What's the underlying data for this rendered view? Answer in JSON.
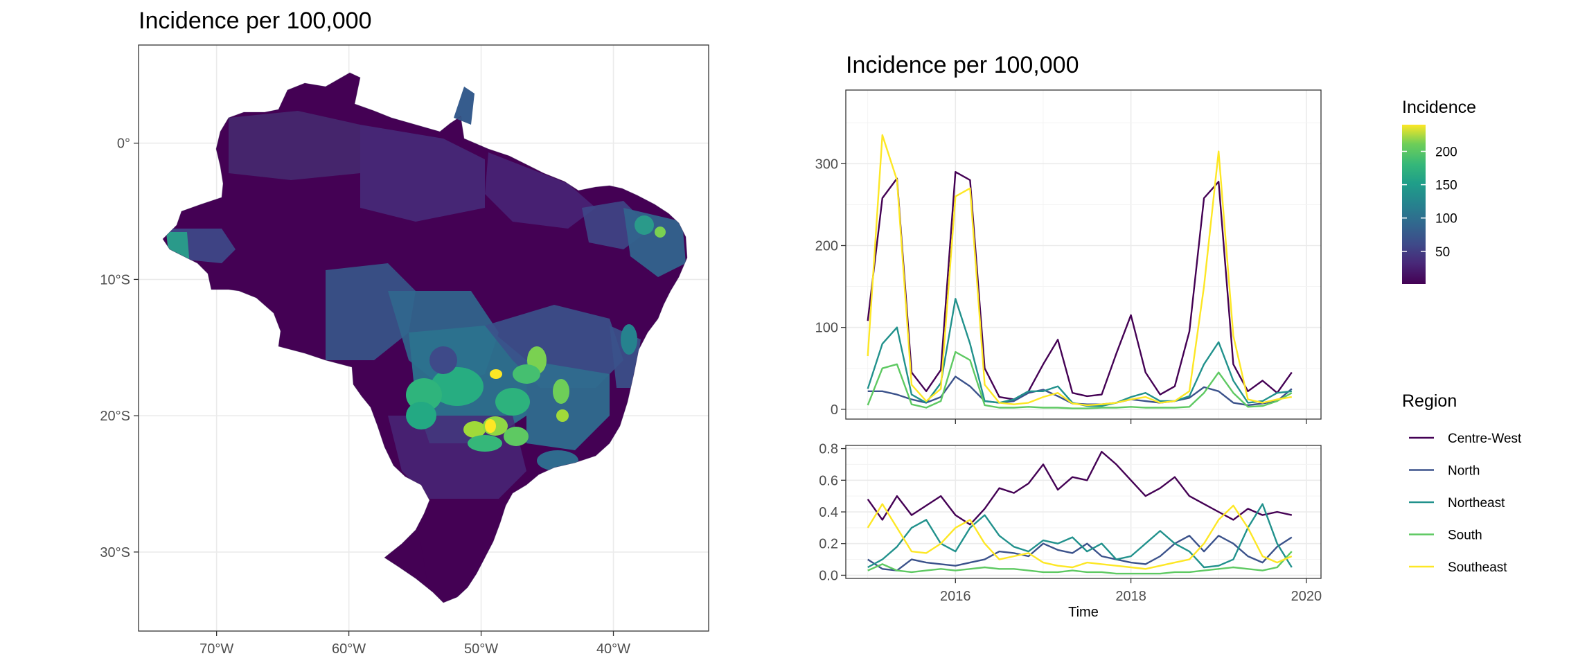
{
  "figure": {
    "map_title": "Incidence per 100,000",
    "ts_title": "Incidence per 100,000"
  },
  "colors": {
    "Centre-West": "#440154",
    "North": "#3b528b",
    "Northeast": "#21918c",
    "South": "#5ec962",
    "Southeast": "#fde725"
  },
  "chart_data": [
    {
      "type": "heatmap",
      "subtype": "choropleth-map",
      "title": "Incidence per 100,000",
      "x_ticks": [
        "70°W",
        "60°W",
        "50°W",
        "40°W"
      ],
      "y_ticks": [
        "0°",
        "10°S",
        "20°S",
        "30°S"
      ],
      "xlim": [
        -75.9,
        -32.8
      ],
      "ylim": [
        -35.8,
        7.2
      ],
      "grid": true,
      "colorbar": {
        "title": "Incidence",
        "ticks": [
          50,
          100,
          150,
          200
        ],
        "range": [
          1,
          240
        ],
        "palette": "viridis",
        "legend_position": "right"
      }
    },
    {
      "type": "line",
      "title": "Incidence per 100,000",
      "xlabel": "",
      "ylabel": "",
      "x": [
        "2015-01",
        "2015-03",
        "2015-05",
        "2015-07",
        "2015-09",
        "2015-11",
        "2016-01",
        "2016-03",
        "2016-05",
        "2016-07",
        "2016-09",
        "2016-11",
        "2017-01",
        "2017-03",
        "2017-05",
        "2017-07",
        "2017-09",
        "2017-11",
        "2018-01",
        "2018-03",
        "2018-05",
        "2018-07",
        "2018-09",
        "2018-11",
        "2019-01",
        "2019-03",
        "2019-05",
        "2019-07",
        "2019-09",
        "2019-11"
      ],
      "xlim": [
        "2014-10",
        "2020-03"
      ],
      "ylim": [
        -12,
        390
      ],
      "y_ticks": [
        0,
        100,
        200,
        300
      ],
      "grid": true,
      "series": [
        {
          "name": "Centre-West",
          "values": [
            108,
            258,
            282,
            45,
            22,
            48,
            290,
            280,
            50,
            15,
            12,
            22,
            55,
            85,
            20,
            16,
            18,
            68,
            115,
            45,
            18,
            28,
            95,
            258,
            278,
            55,
            22,
            35,
            20,
            45
          ]
        },
        {
          "name": "North",
          "values": [
            22,
            22,
            18,
            12,
            8,
            15,
            40,
            28,
            10,
            8,
            10,
            20,
            24,
            16,
            7,
            6,
            6,
            8,
            12,
            10,
            8,
            10,
            14,
            27,
            22,
            8,
            5,
            7,
            10,
            25
          ]
        },
        {
          "name": "Northeast",
          "values": [
            25,
            80,
            100,
            18,
            8,
            32,
            135,
            80,
            10,
            8,
            12,
            22,
            22,
            28,
            8,
            4,
            4,
            8,
            15,
            20,
            10,
            10,
            16,
            55,
            82,
            35,
            8,
            10,
            20,
            22
          ]
        },
        {
          "name": "South",
          "values": [
            5,
            50,
            55,
            6,
            2,
            10,
            70,
            60,
            5,
            2,
            2,
            3,
            2,
            2,
            1,
            1,
            2,
            2,
            3,
            2,
            2,
            2,
            3,
            20,
            45,
            20,
            3,
            4,
            10,
            20
          ]
        },
        {
          "name": "Southeast",
          "values": [
            65,
            335,
            280,
            30,
            10,
            25,
            260,
            270,
            30,
            8,
            6,
            8,
            15,
            20,
            7,
            5,
            6,
            8,
            12,
            15,
            8,
            10,
            22,
            150,
            315,
            90,
            12,
            8,
            12,
            15
          ]
        }
      ]
    },
    {
      "type": "line",
      "title": "",
      "xlabel": "Time",
      "ylabel": "",
      "x": [
        "2015-01",
        "2015-03",
        "2015-05",
        "2015-07",
        "2015-09",
        "2015-11",
        "2016-01",
        "2016-03",
        "2016-05",
        "2016-07",
        "2016-09",
        "2016-11",
        "2017-01",
        "2017-03",
        "2017-05",
        "2017-07",
        "2017-09",
        "2017-11",
        "2018-01",
        "2018-03",
        "2018-05",
        "2018-07",
        "2018-09",
        "2018-11",
        "2019-01",
        "2019-03",
        "2019-05",
        "2019-07",
        "2019-09",
        "2019-11"
      ],
      "x_ticks": [
        "2016",
        "2018",
        "2020"
      ],
      "xlim": [
        "2014-10",
        "2020-03"
      ],
      "ylim": [
        -0.02,
        0.82
      ],
      "y_ticks": [
        0.0,
        0.2,
        0.4,
        0.6,
        0.8
      ],
      "grid": true,
      "series": [
        {
          "name": "Centre-West",
          "values": [
            0.48,
            0.35,
            0.5,
            0.38,
            0.44,
            0.5,
            0.38,
            0.32,
            0.42,
            0.55,
            0.52,
            0.58,
            0.7,
            0.54,
            0.62,
            0.6,
            0.78,
            0.7,
            0.6,
            0.5,
            0.55,
            0.62,
            0.5,
            0.45,
            0.4,
            0.35,
            0.42,
            0.38,
            0.4,
            0.38
          ]
        },
        {
          "name": "North",
          "values": [
            0.1,
            0.04,
            0.03,
            0.1,
            0.08,
            0.07,
            0.06,
            0.08,
            0.1,
            0.15,
            0.14,
            0.12,
            0.2,
            0.16,
            0.14,
            0.2,
            0.12,
            0.1,
            0.08,
            0.07,
            0.12,
            0.2,
            0.25,
            0.15,
            0.25,
            0.2,
            0.12,
            0.08,
            0.18,
            0.24
          ]
        },
        {
          "name": "Northeast",
          "values": [
            0.05,
            0.1,
            0.18,
            0.3,
            0.35,
            0.2,
            0.15,
            0.3,
            0.38,
            0.25,
            0.18,
            0.15,
            0.22,
            0.2,
            0.24,
            0.15,
            0.2,
            0.1,
            0.12,
            0.2,
            0.28,
            0.2,
            0.15,
            0.05,
            0.06,
            0.1,
            0.3,
            0.45,
            0.2,
            0.05
          ]
        },
        {
          "name": "South",
          "values": [
            0.03,
            0.07,
            0.03,
            0.02,
            0.03,
            0.04,
            0.03,
            0.04,
            0.05,
            0.04,
            0.04,
            0.03,
            0.02,
            0.02,
            0.03,
            0.02,
            0.02,
            0.01,
            0.01,
            0.01,
            0.01,
            0.02,
            0.02,
            0.03,
            0.04,
            0.05,
            0.04,
            0.03,
            0.05,
            0.15
          ]
        },
        {
          "name": "Southeast",
          "values": [
            0.3,
            0.45,
            0.3,
            0.15,
            0.14,
            0.2,
            0.3,
            0.35,
            0.2,
            0.1,
            0.12,
            0.14,
            0.08,
            0.06,
            0.05,
            0.08,
            0.07,
            0.06,
            0.05,
            0.04,
            0.06,
            0.08,
            0.1,
            0.2,
            0.35,
            0.44,
            0.3,
            0.12,
            0.08,
            0.12
          ]
        }
      ]
    }
  ],
  "region_legend": {
    "title": "Region",
    "items": [
      "Centre-West",
      "North",
      "Northeast",
      "South",
      "Southeast"
    ]
  }
}
